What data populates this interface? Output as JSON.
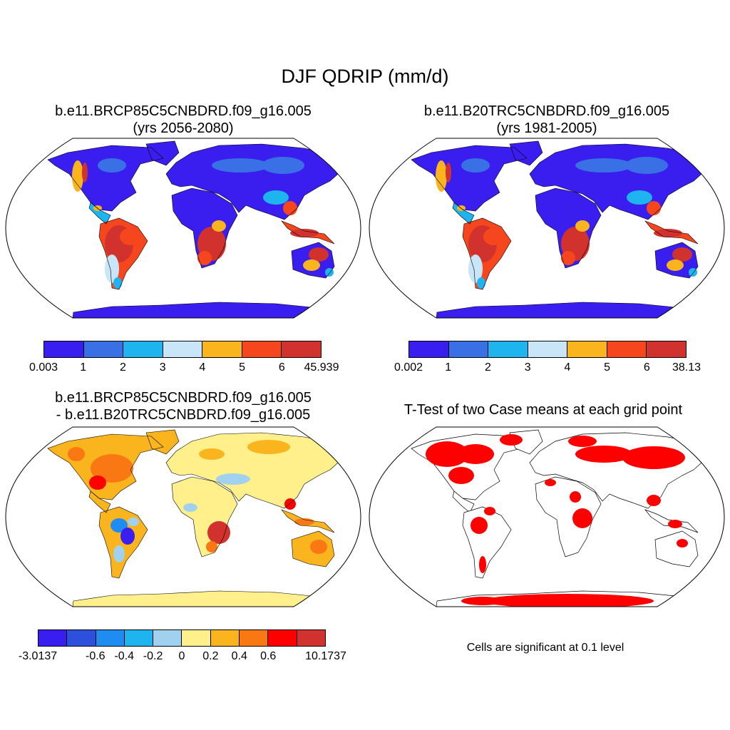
{
  "title": "DJF QDRIP (mm/d)",
  "panels": [
    {
      "title_line1": "b.e11.BRCP85C5CNBDRD.f09_g16.005",
      "title_line2": "(yrs 2056-2080)",
      "colorbar": {
        "colors": [
          "#3a1ef0",
          "#3a70e6",
          "#1eb4f0",
          "#c8e6f8",
          "#fab41e",
          "#f5461e",
          "#d2322d"
        ],
        "labels": [
          "0.003",
          "1",
          "2",
          "3",
          "4",
          "5",
          "6",
          "45.939"
        ]
      }
    },
    {
      "title_line1": "b.e11.B20TRC5CNBDRD.f09_g16.005",
      "title_line2": "(yrs 1981-2005)",
      "colorbar": {
        "colors": [
          "#3a1ef0",
          "#3a70e6",
          "#1eb4f0",
          "#c8e6f8",
          "#fab41e",
          "#f5461e",
          "#d2322d"
        ],
        "labels": [
          "0.002",
          "1",
          "2",
          "3",
          "4",
          "5",
          "6",
          "38.13"
        ]
      }
    },
    {
      "title_line1": "b.e11.BRCP85C5CNBDRD.f09_g16.005",
      "title_line2": "- b.e11.B20TRC5CNBDRD.f09_g16.005",
      "colorbar": {
        "colors": [
          "#3a1ef0",
          "#2d50dc",
          "#1e8cf0",
          "#1eb4f0",
          "#a0d2f0",
          "#fff08c",
          "#fab41e",
          "#fa7814",
          "#ff0000",
          "#d2322d"
        ],
        "labels": [
          "-3.0137",
          "",
          "-0.6",
          "-0.4",
          "-0.2",
          "0",
          "0.2",
          "0.4",
          "0.6",
          "",
          "10.1737"
        ]
      }
    },
    {
      "title_line1": "T-Test of two Case means at each grid point",
      "note": "Cells are significant at 0.1 level",
      "sig_color": "#ff0000"
    }
  ]
}
